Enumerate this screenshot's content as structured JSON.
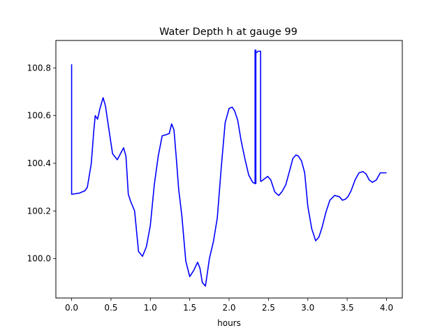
{
  "chart_data": {
    "type": "line",
    "title": "Water Depth h at gauge 99",
    "xlabel": "hours",
    "ylabel": "",
    "xlim": [
      -0.2,
      4.2
    ],
    "ylim": [
      99.835,
      100.915
    ],
    "xticks": [
      "0.0",
      "0.5",
      "1.0",
      "1.5",
      "2.0",
      "2.5",
      "3.0",
      "3.5",
      "4.0"
    ],
    "yticks": [
      "100.0",
      "100.2",
      "100.4",
      "100.6",
      "100.8"
    ],
    "grid": false,
    "series": [
      {
        "color": "#0000ff",
        "x": [
          0.0,
          0.0,
          0.0,
          0.1,
          0.17,
          0.2,
          0.25,
          0.28,
          0.3,
          0.33,
          0.36,
          0.4,
          0.43,
          0.47,
          0.52,
          0.58,
          0.62,
          0.66,
          0.69,
          0.72,
          0.75,
          0.8,
          0.85,
          0.9,
          0.95,
          1.0,
          1.05,
          1.1,
          1.15,
          1.2,
          1.24,
          1.27,
          1.3,
          1.33,
          1.36,
          1.4,
          1.45,
          1.5,
          1.55,
          1.6,
          1.63,
          1.66,
          1.7,
          1.75,
          1.8,
          1.85,
          1.9,
          1.95,
          2.0,
          2.04,
          2.07,
          2.11,
          2.15,
          2.2,
          2.25,
          2.3,
          2.33,
          2.33,
          2.34,
          2.34,
          2.34,
          2.35,
          2.37,
          2.38,
          2.4,
          2.4,
          2.41,
          2.45,
          2.49,
          2.53,
          2.58,
          2.63,
          2.67,
          2.72,
          2.77,
          2.81,
          2.85,
          2.88,
          2.92,
          2.96,
          3.0,
          3.05,
          3.1,
          3.14,
          3.18,
          3.23,
          3.28,
          3.34,
          3.4,
          3.44,
          3.48,
          3.51,
          3.55,
          3.6,
          3.65,
          3.7,
          3.74,
          3.78,
          3.82,
          3.87,
          3.92,
          3.96,
          4.0
        ],
        "y": [
          100.815,
          100.815,
          100.27,
          100.275,
          100.285,
          100.3,
          100.4,
          100.53,
          100.6,
          100.585,
          100.63,
          100.675,
          100.64,
          100.55,
          100.44,
          100.415,
          100.44,
          100.465,
          100.43,
          100.27,
          100.24,
          100.2,
          100.03,
          100.01,
          100.05,
          100.14,
          100.31,
          100.43,
          100.515,
          100.52,
          100.525,
          100.565,
          100.54,
          100.42,
          100.29,
          100.18,
          99.99,
          99.925,
          99.95,
          99.985,
          99.96,
          99.9,
          99.885,
          100.0,
          100.07,
          100.17,
          100.38,
          100.57,
          100.63,
          100.635,
          100.62,
          100.58,
          100.5,
          100.42,
          100.35,
          100.32,
          100.315,
          100.875,
          100.875,
          100.315,
          100.865,
          100.865,
          100.87,
          100.87,
          100.87,
          100.325,
          100.325,
          100.335,
          100.345,
          100.33,
          100.28,
          100.265,
          100.28,
          100.31,
          100.37,
          100.42,
          100.435,
          100.43,
          100.41,
          100.36,
          100.22,
          100.125,
          100.075,
          100.09,
          100.13,
          100.195,
          100.245,
          100.265,
          100.26,
          100.245,
          100.25,
          100.26,
          100.285,
          100.33,
          100.36,
          100.365,
          100.355,
          100.33,
          100.32,
          100.33,
          100.36,
          100.36,
          100.36
        ]
      }
    ]
  }
}
